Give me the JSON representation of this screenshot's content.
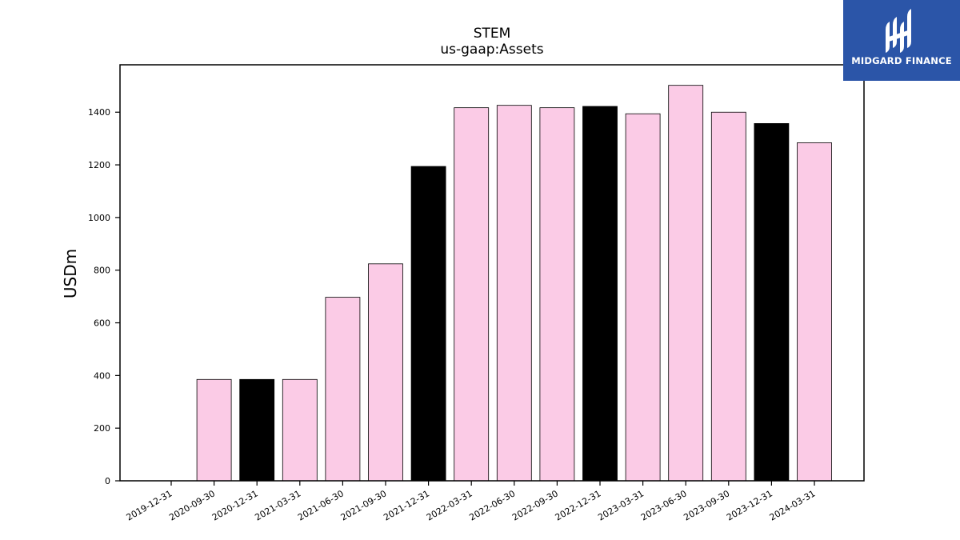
{
  "chart_data": {
    "type": "bar",
    "title": "STEM",
    "subtitle": "us-gaap:Assets",
    "xlabel": "",
    "ylabel": "USDm",
    "ylim": [
      0,
      1580
    ],
    "yticks": [
      0,
      200,
      400,
      600,
      800,
      1000,
      1200,
      1400
    ],
    "grid": false,
    "categories": [
      "2019-12-31",
      "2020-09-30",
      "2020-12-31",
      "2021-03-31",
      "2021-06-30",
      "2021-09-30",
      "2021-12-31",
      "2022-03-31",
      "2022-06-30",
      "2022-09-30",
      "2022-12-31",
      "2023-03-31",
      "2023-06-30",
      "2023-09-30",
      "2023-12-31",
      "2024-03-31"
    ],
    "values": [
      null,
      385,
      385,
      385,
      697,
      824,
      1194,
      1417,
      1426,
      1417,
      1422,
      1394,
      1502,
      1400,
      1357,
      1284
    ],
    "bar_colors": [
      "#fbcbe6",
      "#fbcbe6",
      "#000000",
      "#fbcbe6",
      "#fbcbe6",
      "#fbcbe6",
      "#000000",
      "#fbcbe6",
      "#fbcbe6",
      "#fbcbe6",
      "#000000",
      "#fbcbe6",
      "#fbcbe6",
      "#fbcbe6",
      "#000000",
      "#fbcbe6"
    ]
  },
  "logo": {
    "text": "MIDGARD FINANCE",
    "background": "#2b55a8"
  }
}
